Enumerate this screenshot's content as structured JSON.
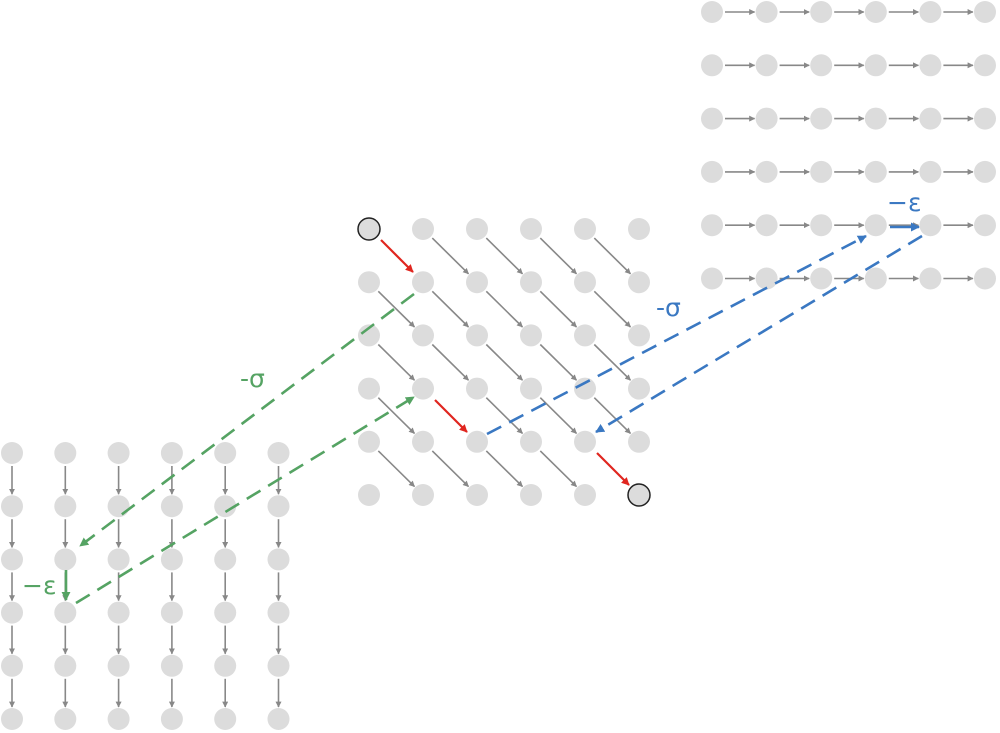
{
  "colors": {
    "node_fill": "#dcdcdc",
    "node_endpoint_fill": "#dcdcdc",
    "node_endpoint_stroke": "#222222",
    "grid_arrow": "#888888",
    "path_arrow": "#e0261f",
    "left_jump": "#55a363",
    "right_jump": "#3a78c2"
  },
  "grids": {
    "vertical": {
      "label": "vertical-grid",
      "rows": 6,
      "cols": 6,
      "direction": "down"
    },
    "diagonal": {
      "label": "diagonal-grid",
      "rows": 6,
      "cols": 6,
      "direction": "diagonal"
    },
    "horizontal": {
      "label": "horizontal-grid",
      "rows": 6,
      "cols": 6,
      "direction": "right"
    }
  },
  "labels": {
    "left_sigma": "-σ",
    "left_epsilon": "−ε",
    "right_sigma": "-σ",
    "right_epsilon": "−ε"
  }
}
